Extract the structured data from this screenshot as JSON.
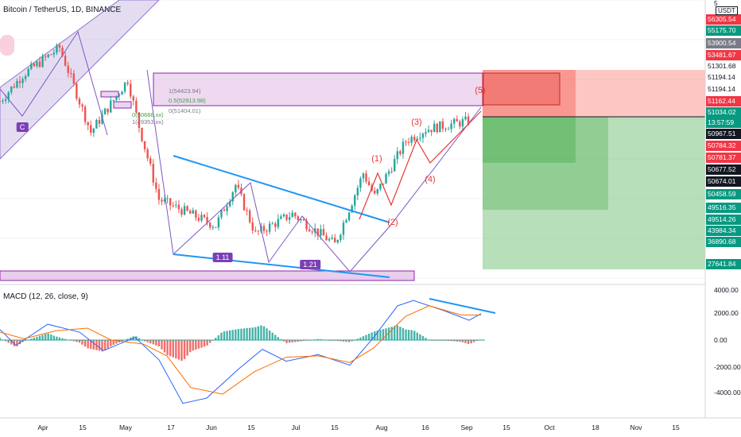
{
  "header": {
    "title": "Bitcoin / TetherUS, 1D, BINANCE"
  },
  "indicator": {
    "label": "MACD (12, 26, close, 9)"
  },
  "price_axis": {
    "badges": [
      {
        "label": "56305.54",
        "bg": "#f23645",
        "fg": "#ffffff"
      },
      {
        "label": "55175.70",
        "bg": "#089981",
        "fg": "#ffffff"
      },
      {
        "label": "53900.54",
        "bg": "#787b86",
        "fg": "#ffffff"
      },
      {
        "label": "53481.67",
        "bg": "#f23645",
        "fg": "#ffffff"
      },
      {
        "label": "51301.68",
        "bg": "#ffffff",
        "fg": "#131722"
      },
      {
        "label": "51194.14",
        "bg": "#ffffff",
        "fg": "#131722"
      },
      {
        "label": "51194.14",
        "bg": "#ffffff",
        "fg": "#131722"
      },
      {
        "label": "51162.44",
        "bg": "#f23645",
        "fg": "#ffffff"
      },
      {
        "label": "51034.02",
        "bg": "#089981",
        "fg": "#ffffff"
      },
      {
        "label": "13:57:59",
        "bg": "#089981",
        "fg": "#ffffff"
      },
      {
        "label": "50967.51",
        "bg": "#131722",
        "fg": "#ffffff"
      },
      {
        "label": "50784.32",
        "bg": "#f23645",
        "fg": "#ffffff"
      },
      {
        "label": "50781.37",
        "bg": "#f23645",
        "fg": "#ffffff"
      },
      {
        "label": "50677.52",
        "bg": "#131722",
        "fg": "#ffffff"
      },
      {
        "label": "50674.01",
        "bg": "#131722",
        "fg": "#ffffff"
      },
      {
        "label": "50458.59",
        "bg": "#089981",
        "fg": "#ffffff"
      },
      {
        "label": "49516.35",
        "bg": "#089981",
        "fg": "#ffffff"
      },
      {
        "label": "49514.26",
        "bg": "#089981",
        "fg": "#ffffff"
      },
      {
        "label": "43984.34",
        "bg": "#089981",
        "fg": "#ffffff"
      },
      {
        "label": "36890.68",
        "bg": "#089981",
        "fg": "#ffffff"
      },
      {
        "label": "27641.84",
        "bg": "#089981",
        "fg": "#ffffff"
      }
    ],
    "top_partial": "5",
    "usdt": "USDT"
  },
  "macd_axis": [
    "4000.00",
    "2000.00",
    "0.00",
    "-2000.00",
    "-4000.00"
  ],
  "time_axis": [
    "Apr",
    "15",
    "May",
    "17",
    "Jun",
    "15",
    "Jul",
    "15",
    "Aug",
    "16",
    "Sep",
    "15",
    "Oct",
    "18",
    "Nov",
    "15"
  ],
  "annotations": {
    "waves": [
      "(1)",
      "(2)",
      "(3)",
      "(4)",
      "(5)"
    ],
    "abc": [
      "C"
    ],
    "ratios": [
      "1.11",
      "1.21"
    ],
    "fib": [
      "1(54423.94)",
      "0.5(52913.98)",
      "0(51404.01)",
      "0(50688.xx)",
      "1(49353.xx)"
    ]
  },
  "colors": {
    "bull": "#26a69a",
    "bear": "#ef5350",
    "macd": "#2962ff",
    "signal": "#ff6d00",
    "trend": "#2196f3",
    "box": "#9c27b0"
  },
  "chart_data": {
    "type": "candlestick",
    "symbol": "BTCUSDT",
    "timeframe": "1D",
    "exchange": "BINANCE",
    "close_path": [
      [
        "Mar 24",
        54300
      ],
      [
        "Apr 1",
        58800
      ],
      [
        "Apr 14",
        63500
      ],
      [
        "Apr 25",
        49000
      ],
      [
        "May 8",
        58000
      ],
      [
        "May 12",
        50000
      ],
      [
        "May 19",
        37500
      ],
      [
        "Jun 8",
        33000
      ],
      [
        "Jun 15",
        40000
      ],
      [
        "Jun 22",
        31600
      ],
      [
        "Jul 5",
        35000
      ],
      [
        "Jul 20",
        29800
      ],
      [
        "Jul 30",
        42000
      ],
      [
        "Aug 3",
        38000
      ],
      [
        "Aug 14",
        47500
      ],
      [
        "Aug 21",
        49500
      ],
      [
        "Sep 6",
        51034
      ]
    ],
    "current_price": 51034.02,
    "macd_range": [
      -4800,
      4000
    ]
  }
}
